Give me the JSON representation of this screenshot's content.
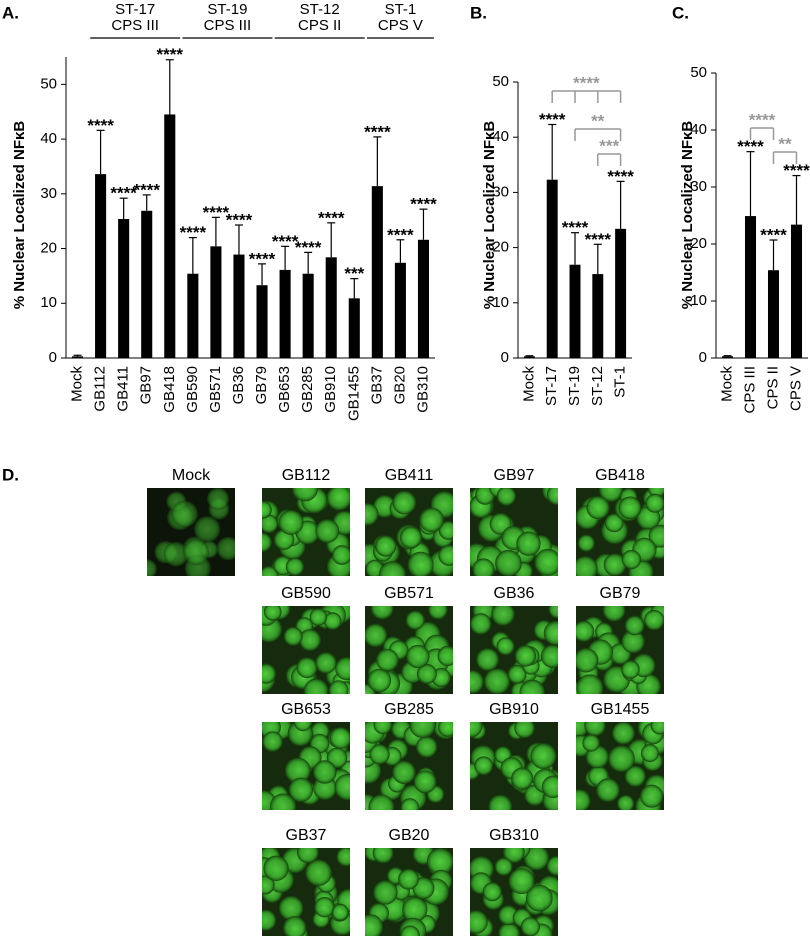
{
  "chart_data": [
    {
      "type": "bar",
      "panel": "A.",
      "ylabel": "% Nuclear Localized NFκB",
      "categories": [
        "Mock",
        "GB112",
        "GB411",
        "GB97",
        "GB418",
        "GB590",
        "GB571",
        "GB36",
        "GB79",
        "GB653",
        "GB285",
        "GB910",
        "GB1455",
        "GB37",
        "GB20",
        "GB310"
      ],
      "values": [
        0.3,
        33.6,
        25.4,
        26.9,
        44.5,
        15.4,
        20.4,
        18.9,
        13.3,
        16.1,
        15.4,
        18.4,
        10.9,
        31.4,
        17.4,
        21.6
      ],
      "errors": [
        0.2,
        8,
        3.8,
        2.9,
        10,
        6.6,
        5.3,
        5.4,
        3.9,
        4.3,
        3.9,
        6.3,
        3.6,
        9,
        4.2,
        5.6
      ],
      "annotations": [
        null,
        "****",
        "****",
        "****",
        "****",
        "****",
        "****",
        "****",
        "****",
        "****",
        "****",
        "****",
        "***",
        "****",
        "****",
        "****"
      ],
      "groups": [
        {
          "lines": [
            "ST-17",
            "CPS III"
          ],
          "span": [
            "GB112",
            "GB418"
          ]
        },
        {
          "lines": [
            "ST-19",
            "CPS III"
          ],
          "span": [
            "GB590",
            "GB79"
          ]
        },
        {
          "lines": [
            "ST-12",
            "CPS II"
          ],
          "span": [
            "GB653",
            "GB1455"
          ]
        },
        {
          "lines": [
            "ST-1",
            "CPS V"
          ],
          "span": [
            "GB37",
            "GB310"
          ]
        }
      ],
      "ylim": [
        0,
        55
      ],
      "yticks": [
        0,
        10,
        20,
        30,
        40,
        50
      ],
      "color": "#000000"
    },
    {
      "type": "bar",
      "panel": "B.",
      "ylabel": "% Nuclear Localized NFκB",
      "categories": [
        "Mock",
        "ST-17",
        "ST-19",
        "ST-12",
        "ST-1"
      ],
      "values": [
        0.3,
        32.3,
        16.9,
        15.2,
        23.4
      ],
      "errors": [
        0.1,
        10,
        5.8,
        5.4,
        8.6
      ],
      "annotations": [
        null,
        "****",
        "****",
        "****",
        "****"
      ],
      "comparisons": [
        {
          "label": "****",
          "between": [
            "ST-17",
            "ST-19",
            "ST-12",
            "ST-1"
          ]
        },
        {
          "label": "**",
          "between": [
            "ST-19",
            "ST-1"
          ]
        },
        {
          "label": "***",
          "between": [
            "ST-12",
            "ST-1"
          ]
        }
      ],
      "ylim": [
        0,
        50
      ],
      "yticks": [
        0,
        10,
        20,
        30,
        40,
        50
      ],
      "color": "#000000"
    },
    {
      "type": "bar",
      "panel": "C.",
      "ylabel": "% Nuclear Localized NFκB",
      "categories": [
        "Mock",
        "CPS III",
        "CPS II",
        "CPS V"
      ],
      "values": [
        0.3,
        24.9,
        15.4,
        23.4
      ],
      "errors": [
        0.1,
        11.3,
        5.3,
        8.6
      ],
      "annotations": [
        null,
        "****",
        "****",
        "****"
      ],
      "comparisons": [
        {
          "label": "****",
          "between": [
            "CPS III",
            "CPS II"
          ]
        },
        {
          "label": "**",
          "between": [
            "CPS II",
            "CPS V"
          ]
        }
      ],
      "ylim": [
        0,
        50
      ],
      "yticks": [
        0,
        10,
        20,
        30,
        40,
        50
      ],
      "color": "#000000"
    }
  ],
  "images": {
    "panel": "D.",
    "labels": [
      "Mock",
      "GB112",
      "GB411",
      "GB97",
      "GB418",
      "GB590",
      "GB571",
      "GB36",
      "GB79",
      "GB653",
      "GB285",
      "GB910",
      "GB1455",
      "GB37",
      "GB20",
      "GB310"
    ]
  }
}
